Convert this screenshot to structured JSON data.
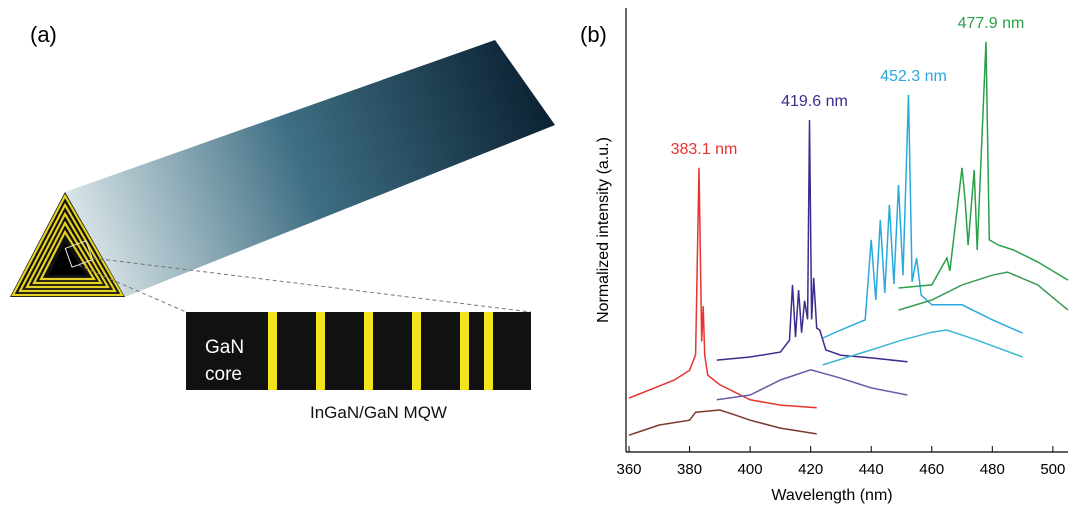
{
  "panel_a": {
    "label": "(a)",
    "core_label": [
      "GaN",
      "core"
    ],
    "mqw_label": "InGaN/GaN MQW"
  },
  "chart_data": {
    "type": "line",
    "panel_label": "(b)",
    "x_label": "Wavelength (nm)",
    "y_label": "Normalized intensity (a.u.)",
    "xlim": [
      359,
      505
    ],
    "ylim": [
      0,
      100
    ],
    "xticks": [
      360,
      380,
      400,
      420,
      440,
      460,
      480,
      500
    ],
    "series": [
      {
        "color": "#7a3b2e",
        "x": [
          360,
          370,
          380,
          382,
          390,
          395,
          400,
          410,
          422
        ],
        "values": [
          3.8,
          6.1,
          7.2,
          9,
          9.5,
          8.4,
          7.2,
          5.4,
          4.1
        ]
      },
      {
        "name": "383.1 nm",
        "color": "#e8332e",
        "x": [
          360,
          375,
          380,
          382,
          383.1,
          384,
          384.5,
          385,
          386,
          390,
          400,
          410,
          422
        ],
        "values": [
          12.2,
          16.3,
          18.5,
          22,
          64.3,
          25,
          33,
          22,
          17.4,
          15.2,
          11.8,
          10.6,
          10
        ]
      },
      {
        "color": "#6a5aa8",
        "x": [
          389,
          400,
          410,
          420,
          430,
          440,
          452
        ],
        "values": [
          11.8,
          12.9,
          16.3,
          18.6,
          16.7,
          14.5,
          12.9
        ]
      },
      {
        "name": "419.6 nm",
        "color": "#3d2c8f",
        "x": [
          389,
          400,
          410,
          413,
          414,
          415,
          416,
          417,
          418,
          419,
          419.6,
          420.3,
          421,
          422,
          423,
          425,
          430,
          440,
          452
        ],
        "values": [
          20.8,
          21.5,
          22.6,
          25.3,
          37.8,
          26,
          36.6,
          27,
          34.2,
          30,
          75.1,
          30,
          39.4,
          28,
          27.6,
          23.1,
          21.9,
          21.3,
          20.4
        ]
      },
      {
        "color": "#3cb8d0",
        "x": [
          424,
          440,
          450,
          460,
          465,
          475,
          490
        ],
        "values": [
          19.7,
          23.1,
          25.3,
          27.1,
          27.6,
          25.3,
          21.5
        ]
      },
      {
        "name": "452.3 nm",
        "color": "#29a9dc",
        "x": [
          424,
          430,
          438,
          440,
          441.5,
          443,
          444.5,
          446,
          447.5,
          449,
          450.5,
          452.3,
          453.5,
          455,
          456.5,
          460,
          470,
          480,
          490
        ],
        "values": [
          25.8,
          27.6,
          29.9,
          48,
          34.4,
          52.5,
          36,
          55.9,
          38,
          60.4,
          40,
          80.8,
          38.5,
          43.9,
          35.5,
          33.3,
          33.3,
          29.9,
          26.9
        ]
      },
      {
        "color": "#3c9a55",
        "x": [
          449,
          460,
          470,
          480,
          485,
          495,
          505
        ],
        "values": [
          32.1,
          34.4,
          37.8,
          40,
          40.7,
          37.8,
          32.1
        ]
      },
      {
        "name": "477.9 nm",
        "color": "#2aa04a",
        "x": [
          449,
          460,
          465,
          466,
          470,
          471,
          472,
          474,
          475,
          477.9,
          479,
          482,
          487,
          495,
          505
        ],
        "values": [
          37.1,
          37.8,
          43.9,
          41,
          64.3,
          57,
          46.8,
          63.8,
          45.7,
          92.8,
          48,
          46.8,
          45.7,
          43,
          38.9
        ]
      }
    ]
  }
}
